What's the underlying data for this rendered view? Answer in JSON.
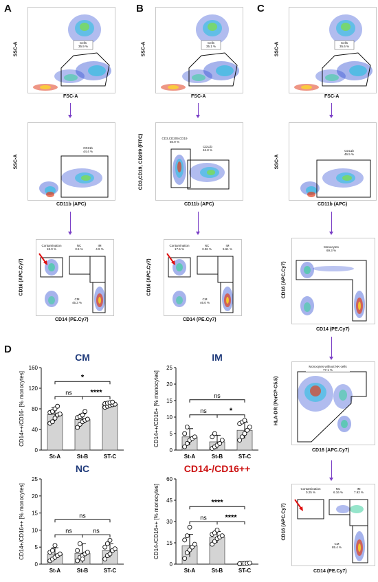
{
  "panels": {
    "A": "A",
    "B": "B",
    "C": "C",
    "D": "D"
  },
  "flow": {
    "A1": {
      "x": "FSC-A",
      "y": "SSC-A",
      "gate": "Cells",
      "pct": "35.9 %"
    },
    "B1": {
      "x": "FSC-A",
      "y": "SSC-A",
      "gate": "Cells",
      "pct": "35.1 %"
    },
    "C1": {
      "x": "FSC-A",
      "y": "SSC-A",
      "gate": "Cells",
      "pct": "35.6 %"
    },
    "A2": {
      "x": "CD11b (APC)",
      "y": "SSC-A",
      "gate": "CD11b",
      "pct": "44.4 %"
    },
    "B2": {
      "x": "CD11b (APC)",
      "y": "CD3,CD19, CD209 (FITC)",
      "gate1": "CD3,CD209,CD19",
      "pct1": "50.9 %",
      "gate2": "CD11b",
      "pct2": "46.8 %"
    },
    "C2": {
      "x": "CD11b (APC)",
      "y": "SSC-A",
      "gate": "CD11b",
      "pct": "46.5 %"
    },
    "A3": {
      "x": "CD14 (PE.Cy7)",
      "y": "CD16 (APC.Cy7)",
      "cont": "Contamination",
      "cont_pct": "18.0 %",
      "nc": "NC",
      "nc_pct": "3.5 %",
      "im": "IM",
      "im_pct": "4.9 %",
      "cm": "CM",
      "cm_pct": "45.3 %"
    },
    "B3": {
      "x": "CD14 (PE.Cy7)",
      "y": "CD16 (APC.Cy7)",
      "cont": "Contamination",
      "cont_pct": "17.5 %",
      "nc": "NC",
      "nc_pct": "3.36 %",
      "im": "IM",
      "im_pct": "5.61 %",
      "cm": "CM",
      "cm_pct": "46.0 %"
    },
    "C3": {
      "x": "CD14 (PE.Cy7)",
      "y": "CD16 (APC.Cy7)",
      "gate": "Monocytes",
      "pct": "69.3 %"
    },
    "C4": {
      "x": "CD16 (APC.Cy7)",
      "y": "HLA-DR (PerCP-C5.5)",
      "gate": "Monocytes without NK-cells",
      "pct": "77.1 %"
    },
    "C5": {
      "x": "CD14 (PE.Cy7)",
      "y": "CD16 (APC.Cy7)",
      "cont": "Contamination",
      "cont_pct": "0.25 %",
      "nc": "NC",
      "nc_pct": "6.16 %",
      "im": "IM",
      "im_pct": "7.92 %",
      "cm": "CM",
      "cm_pct": "85.4 %"
    }
  },
  "colors": {
    "gate": "#111111",
    "arrow": "#7a3fc6",
    "red_arrow": "#e01010",
    "bar": "#d4d4d4",
    "title_blue": "#1f3a7a",
    "title_red": "#cc1111"
  },
  "chart_data": [
    {
      "type": "bar",
      "title": "CM",
      "ylabel": "CD14++/CD16- [% monocytes]",
      "categories": [
        "St-A",
        "St-B",
        "ST-C"
      ],
      "values": [
        69,
        60,
        89
      ],
      "errors": [
        13,
        10,
        4
      ],
      "points": [
        [
          52,
          55,
          62,
          68,
          70,
          73,
          75,
          80,
          85
        ],
        [
          44,
          50,
          55,
          58,
          60,
          63,
          65,
          68,
          75
        ],
        [
          83,
          85,
          87,
          88,
          89,
          90,
          91,
          92,
          93
        ]
      ],
      "ylim": [
        0,
        160
      ],
      "yticks": [
        0,
        40,
        80,
        120,
        160
      ],
      "sig": [
        {
          "from": 0,
          "to": 1,
          "label": "ns"
        },
        {
          "from": 1,
          "to": 2,
          "label": "****"
        },
        {
          "from": 0,
          "to": 2,
          "label": "*"
        }
      ]
    },
    {
      "type": "bar",
      "title": "IM",
      "ylabel": "CD14++/CD16+ [% monocytes]",
      "categories": [
        "St-A",
        "St-B",
        "ST-C"
      ],
      "values": [
        4,
        2.5,
        6
      ],
      "errors": [
        2.5,
        2,
        2.5
      ],
      "points": [
        [
          1,
          2,
          3,
          3.5,
          4,
          5,
          7
        ],
        [
          0.5,
          1,
          1.5,
          2,
          3,
          4,
          5
        ],
        [
          3,
          4,
          5,
          6,
          7,
          8,
          8.5,
          9
        ]
      ],
      "ylim": [
        0,
        25
      ],
      "yticks": [
        0,
        5,
        10,
        15,
        20,
        25
      ],
      "sig": [
        {
          "from": 0,
          "to": 1,
          "label": "ns"
        },
        {
          "from": 1,
          "to": 2,
          "label": "*"
        },
        {
          "from": 0,
          "to": 2,
          "label": "ns"
        }
      ]
    },
    {
      "type": "bar",
      "title": "NC",
      "ylabel": "CD14+/CD16++ [% monocytes]",
      "categories": [
        "St-A",
        "St-B",
        "ST-C"
      ],
      "values": [
        3,
        3.2,
        4
      ],
      "errors": [
        1.8,
        2.8,
        2
      ],
      "points": [
        [
          1,
          1.5,
          2,
          2.5,
          3,
          3.5,
          4,
          5.5
        ],
        [
          1,
          2,
          2.5,
          3,
          3.5,
          4,
          6,
          1.5
        ],
        [
          1.5,
          2.5,
          3,
          4,
          4.5,
          5,
          6,
          7
        ]
      ],
      "ylim": [
        0,
        25
      ],
      "yticks": [
        0,
        5,
        10,
        15,
        20,
        25
      ],
      "sig": [
        {
          "from": 0,
          "to": 1,
          "label": "ns"
        },
        {
          "from": 1,
          "to": 2,
          "label": "ns"
        },
        {
          "from": 0,
          "to": 2,
          "label": "ns"
        }
      ]
    },
    {
      "type": "bar",
      "title": "CD14-/CD16++",
      "ylabel": "CD14-/CD16++ [% monocytes]",
      "categories": [
        "St-A",
        "St-B",
        "ST-C"
      ],
      "values": [
        13,
        19,
        0.5
      ],
      "errors": [
        8,
        4,
        0.3
      ],
      "points": [
        [
          4,
          8,
          10,
          12,
          14,
          17,
          20,
          26
        ],
        [
          14,
          16,
          18,
          19,
          20,
          21,
          22,
          24
        ],
        [
          0.2,
          0.4,
          0.5,
          0.6,
          0.8,
          0.3
        ]
      ],
      "ylim": [
        0,
        60
      ],
      "yticks": [
        0,
        15,
        30,
        45,
        60
      ],
      "sig": [
        {
          "from": 0,
          "to": 1,
          "label": "ns"
        },
        {
          "from": 1,
          "to": 2,
          "label": "****"
        },
        {
          "from": 0,
          "to": 2,
          "label": "****"
        }
      ]
    }
  ]
}
